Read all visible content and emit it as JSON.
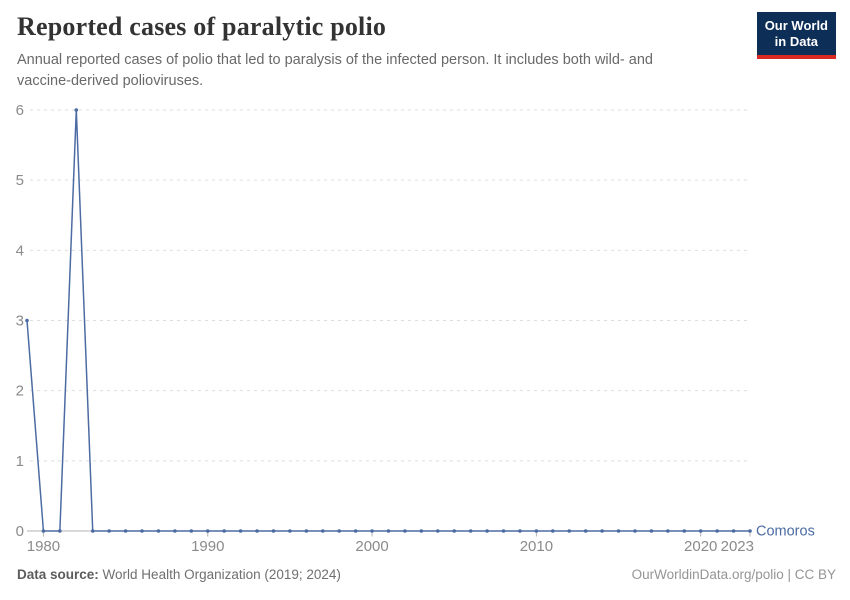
{
  "header": {
    "title": "Reported cases of paralytic polio",
    "subtitle": "Annual reported cases of polio that led to paralysis of the infected person. It includes both wild- and vaccine-derived polioviruses.",
    "logo": {
      "line1": "Our World",
      "line2": "in Data"
    }
  },
  "chart_data": {
    "type": "line",
    "title": "Reported cases of paralytic polio",
    "x": [
      1979,
      1980,
      1981,
      1982,
      1983,
      1984,
      1985,
      1986,
      1987,
      1988,
      1989,
      1990,
      1991,
      1992,
      1993,
      1994,
      1995,
      1996,
      1997,
      1998,
      1999,
      2000,
      2001,
      2002,
      2003,
      2004,
      2005,
      2006,
      2007,
      2008,
      2009,
      2010,
      2011,
      2012,
      2013,
      2014,
      2015,
      2016,
      2017,
      2018,
      2019,
      2020,
      2021,
      2022,
      2023
    ],
    "series": [
      {
        "name": "Comoros",
        "color": "#4c6ba3",
        "values": [
          3,
          0,
          0,
          6,
          0,
          0,
          0,
          0,
          0,
          0,
          0,
          0,
          0,
          0,
          0,
          0,
          0,
          0,
          0,
          0,
          0,
          0,
          0,
          0,
          0,
          0,
          0,
          0,
          0,
          0,
          0,
          0,
          0,
          0,
          0,
          0,
          0,
          0,
          0,
          0,
          0,
          0,
          0,
          0,
          0
        ]
      }
    ],
    "xlabel": "",
    "ylabel": "",
    "xlim": [
      1979,
      2023
    ],
    "ylim": [
      0,
      6
    ],
    "x_ticks": [
      1980,
      1990,
      2000,
      2010,
      2020,
      2023
    ],
    "y_ticks": [
      0,
      1,
      2,
      3,
      4,
      5,
      6
    ],
    "grid": "horizontal-dashed",
    "legend_position": "entity-label-right-of-line-end"
  },
  "colors": {
    "line": "#4c6ba3",
    "grid": "#dddddd",
    "axis": "#b3b3b3",
    "tick_text": "#8b8b8b",
    "logo_bg": "#0d2e57",
    "logo_accent": "#d92a21"
  },
  "footer": {
    "source_label": "Data source:",
    "source_value": "World Health Organization (2019; 2024)",
    "credit": "OurWorldinData.org/polio | CC BY"
  }
}
